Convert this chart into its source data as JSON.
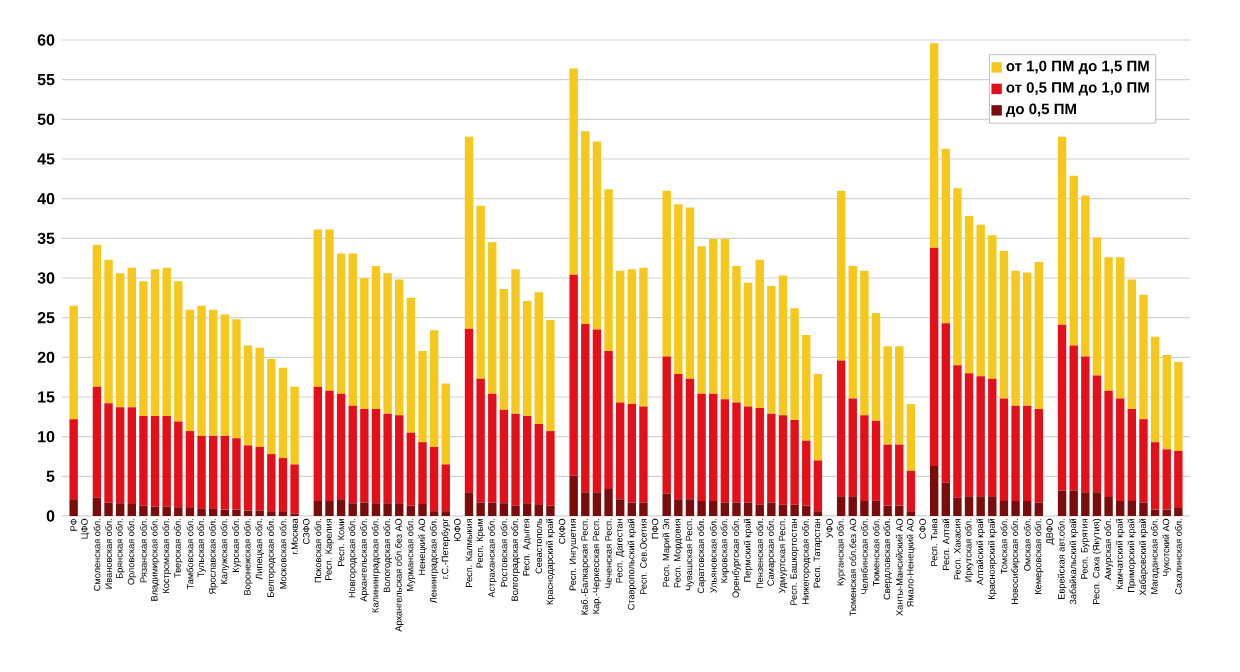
{
  "chart_data": {
    "type": "bar",
    "stacked": true,
    "categories": [
      "РФ",
      "ЦФО",
      "Смоленская обл.",
      "Ивановская обл.",
      "Брянская обл.",
      "Орловская обл.",
      "Рязанская обл.",
      "Владимирская обл.",
      "Костромская обл.",
      "Тверская обл.",
      "Тамбовская обл.",
      "Тульская обл.",
      "Ярославская обл.",
      "Калужская обл.",
      "Курская обл.",
      "Воронежская обл.",
      "Липецкая обл.",
      "Белгородская обл.",
      "Московская обл.",
      "г.Москва",
      "СЗФО",
      "Псковская обл.",
      "Респ. Карелия",
      "Респ. Коми",
      "Новгородская обл.",
      "Архангельская обл.",
      "Калининградская обл.",
      "Вологодская обл.",
      "Архангельская обл.без АО",
      "Мурманская обл.",
      "Ненецкий АО",
      "Ленинградская обл.",
      "г.С.-Петербург",
      "ЮФО",
      "Респ. Калмыкия",
      "Респ. Крым",
      "Астраханская обл.",
      "Ростовская обл.",
      "Волгоградская обл.",
      "Респ. Адыгея",
      "Севастополь",
      "Краснодарский край",
      "СКФО",
      "Респ. Ингушетия",
      "Каб.-Балкарская Респ.",
      "Кар.-Черкесская Респ.",
      "Чеченская Респ.",
      "Респ. Дагестан",
      "Ставропольский край",
      "Респ. Сев.Осетия",
      "ПФО",
      "Респ. Марий Эл",
      "Респ. Мордовия",
      "Чувашская Респ.",
      "Саратовская обл.",
      "Ульяновская обл.",
      "Кировская обл.",
      "Оренбургская обл.",
      "Пермский край",
      "Пензенская обл.",
      "Самарская обл.",
      "Удмуртская Респ.",
      "Респ. Башкортостан",
      "Нижегородская обл.",
      "Респ. Татарстан",
      "УФО",
      "Курганская обл.",
      "Тюменская обл.без АО",
      "Челябинская обл.",
      "Тюменская обл.",
      "Свердловская обл.",
      "Ханты-Мансийский АО",
      "Ямало-Ненецкий АО",
      "СФО",
      "Респ. Тыва",
      "Респ. Алтай",
      "Респ. Хакасия",
      "Иркутская обл.",
      "Алтайский край",
      "Красноярский край",
      "Томская обл.",
      "Новосибирская обл.",
      "Омская обл.",
      "Кемеровская обл.",
      "ДВФО",
      "Еврейская авт.обл.",
      "Забайкальский край",
      "Респ. Бурятия",
      "Респ. Саха (Якутия)",
      "Амурская обл.",
      "Камчатский край",
      "Приморский край",
      "Хабаровский край",
      "Магаданская обл.",
      "Чукотский АО",
      "Сахалинская обл."
    ],
    "series": [
      {
        "name": "до 0,5 ПМ",
        "color": "#7a0c0c",
        "values": [
          2.1,
          null,
          2.3,
          1.7,
          1.6,
          1.5,
          1.3,
          1.2,
          1.2,
          1.1,
          1.0,
          0.9,
          0.9,
          0.8,
          0.8,
          0.7,
          0.7,
          0.6,
          0.6,
          0.3,
          null,
          1.9,
          1.9,
          2.1,
          1.6,
          1.7,
          1.6,
          1.6,
          1.6,
          1.3,
          1.5,
          0.6,
          0.6,
          null,
          3.0,
          1.7,
          1.7,
          1.6,
          1.3,
          1.6,
          1.4,
          1.3,
          null,
          5.1,
          3.0,
          3.0,
          3.4,
          2.1,
          1.7,
          1.7,
          null,
          2.8,
          2.1,
          2.1,
          1.9,
          1.9,
          1.7,
          1.7,
          1.7,
          1.4,
          1.7,
          1.4,
          1.4,
          1.3,
          0.6,
          null,
          2.5,
          2.5,
          1.9,
          1.9,
          1.3,
          1.3,
          0.6,
          null,
          6.3,
          4.2,
          2.3,
          2.5,
          2.5,
          2.5,
          1.9,
          1.9,
          1.9,
          1.7,
          null,
          3.2,
          3.2,
          3.0,
          3.0,
          2.4,
          1.9,
          1.9,
          1.7,
          0.8,
          0.8,
          1.0
        ]
      },
      {
        "name": "от 0,5 ПМ до 1,0 ПМ",
        "color": "#e3101a",
        "values": [
          10.1,
          null,
          14.0,
          12.5,
          12.1,
          12.2,
          11.3,
          11.4,
          11.4,
          10.8,
          9.7,
          9.2,
          9.2,
          9.3,
          9.0,
          8.2,
          8.0,
          7.2,
          6.7,
          6.2,
          null,
          14.4,
          13.9,
          13.3,
          12.3,
          11.8,
          11.9,
          11.3,
          11.1,
          9.2,
          7.8,
          8.1,
          5.9,
          null,
          20.6,
          15.6,
          13.7,
          11.8,
          11.6,
          11.0,
          10.2,
          9.4,
          null,
          25.3,
          21.2,
          20.5,
          17.4,
          12.2,
          12.4,
          12.1,
          null,
          17.3,
          15.8,
          15.2,
          13.5,
          13.5,
          13.0,
          12.6,
          12.1,
          12.2,
          11.2,
          11.3,
          10.7,
          8.2,
          6.4,
          null,
          17.1,
          12.3,
          10.8,
          10.1,
          7.7,
          7.7,
          5.1,
          null,
          27.5,
          20.1,
          16.7,
          15.5,
          15.1,
          14.8,
          12.9,
          12.0,
          12.0,
          11.8,
          null,
          20.9,
          18.3,
          17.1,
          14.7,
          13.4,
          12.9,
          11.6,
          10.5,
          8.5,
          7.6,
          7.2
        ]
      },
      {
        "name": "от 1,0 ПМ до 1,5 ПМ",
        "color": "#f6c81e",
        "values": [
          14.3,
          null,
          17.9,
          18.1,
          16.9,
          17.6,
          17.0,
          18.5,
          18.7,
          17.7,
          15.3,
          16.4,
          15.9,
          15.3,
          15.0,
          12.6,
          12.5,
          12.0,
          11.4,
          9.8,
          null,
          19.8,
          20.3,
          17.7,
          19.2,
          16.5,
          18.0,
          17.7,
          17.1,
          17.0,
          11.5,
          14.7,
          10.2,
          null,
          24.2,
          21.8,
          19.1,
          15.2,
          18.2,
          14.5,
          16.6,
          14.0,
          null,
          26.0,
          24.3,
          23.7,
          20.4,
          16.6,
          17.0,
          17.5,
          null,
          20.9,
          21.4,
          21.6,
          18.6,
          19.5,
          20.2,
          17.2,
          15.6,
          18.7,
          16.1,
          17.6,
          14.1,
          13.3,
          10.9,
          null,
          21.4,
          16.7,
          18.2,
          13.6,
          12.4,
          12.4,
          8.4,
          null,
          25.8,
          22.0,
          22.3,
          19.8,
          19.1,
          18.1,
          18.6,
          17.0,
          16.8,
          18.5,
          null,
          23.7,
          21.4,
          20.3,
          17.4,
          16.8,
          17.8,
          16.3,
          15.7,
          13.3,
          11.9,
          11.2
        ]
      }
    ],
    "ylim": [
      0,
      60
    ],
    "yticks": [
      0,
      5,
      10,
      15,
      20,
      25,
      30,
      35,
      40,
      45,
      50,
      55,
      60
    ],
    "grid": "y",
    "legend": "top right"
  }
}
